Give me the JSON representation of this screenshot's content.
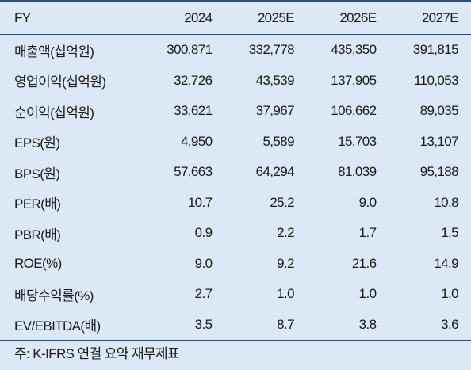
{
  "table": {
    "header": [
      "FY",
      "2024",
      "2025E",
      "2026E",
      "2027E"
    ],
    "rows": [
      [
        "매출액(십억원)",
        "300,871",
        "332,778",
        "435,350",
        "391,815"
      ],
      [
        "영업이익(십억원)",
        "32,726",
        "43,539",
        "137,905",
        "110,053"
      ],
      [
        "순이익(십억원)",
        "33,621",
        "37,967",
        "106,662",
        "89,035"
      ],
      [
        "EPS(원)",
        "4,950",
        "5,589",
        "15,703",
        "13,107"
      ],
      [
        "BPS(원)",
        "57,663",
        "64,294",
        "81,039",
        "95,188"
      ],
      [
        "PER(배)",
        "10.7",
        "25.2",
        "9.0",
        "10.8"
      ],
      [
        "PBR(배)",
        "0.9",
        "2.2",
        "1.7",
        "1.5"
      ],
      [
        "ROE(%)",
        "9.0",
        "9.2",
        "21.6",
        "14.9"
      ],
      [
        "배당수익률(%)",
        "2.7",
        "1.0",
        "1.0",
        "1.0"
      ],
      [
        "EV/EBITDA(배)",
        "3.5",
        "8.7",
        "3.8",
        "3.6"
      ]
    ]
  },
  "note": "주: K-IFRS 연결 요약 재무제표"
}
